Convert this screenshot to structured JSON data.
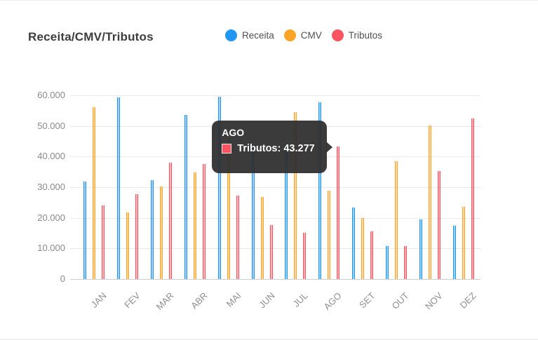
{
  "card": {
    "title": "Receita/CMV/Tributos"
  },
  "legend": {
    "items": [
      {
        "label": "Receita",
        "color": "#2196F3"
      },
      {
        "label": "CMV",
        "color": "#FCA426"
      },
      {
        "label": "Tributos",
        "color": "#F9545F"
      }
    ]
  },
  "chart_data": {
    "type": "bar",
    "title": "Receita/CMV/Tributos",
    "categories": [
      "JAN",
      "FEV",
      "MAR",
      "ABR",
      "MAI",
      "JUN",
      "JUL",
      "AGO",
      "SET",
      "OUT",
      "NOV",
      "DEZ"
    ],
    "series": [
      {
        "name": "Receita",
        "color": "#2196F3",
        "values": [
          31900,
          59200,
          32400,
          53500,
          59600,
          44000,
          43700,
          57600,
          23400,
          10800,
          19400,
          17400
        ]
      },
      {
        "name": "CMV",
        "color": "#FCA426",
        "values": [
          56100,
          21700,
          30300,
          34800,
          46000,
          26900,
          54600,
          28900,
          20000,
          38500,
          50100,
          23500
        ]
      },
      {
        "name": "Tributos",
        "color": "#F9545F",
        "values": [
          24100,
          27700,
          38100,
          37500,
          27300,
          17600,
          15200,
          43277,
          15500,
          10700,
          35200,
          52400
        ]
      }
    ],
    "ylim": [
      0,
      60000
    ],
    "y_ticks": [
      "0",
      "10.000",
      "20.000",
      "30.000",
      "40.000",
      "50.000",
      "60.000"
    ],
    "grid": true,
    "legend_position": "top"
  },
  "tooltip": {
    "title": "AGO",
    "series": "Tributos",
    "value_text": "43.277",
    "label": "Tributos: 43.277",
    "color": "#F9545F",
    "month_index": 7
  }
}
